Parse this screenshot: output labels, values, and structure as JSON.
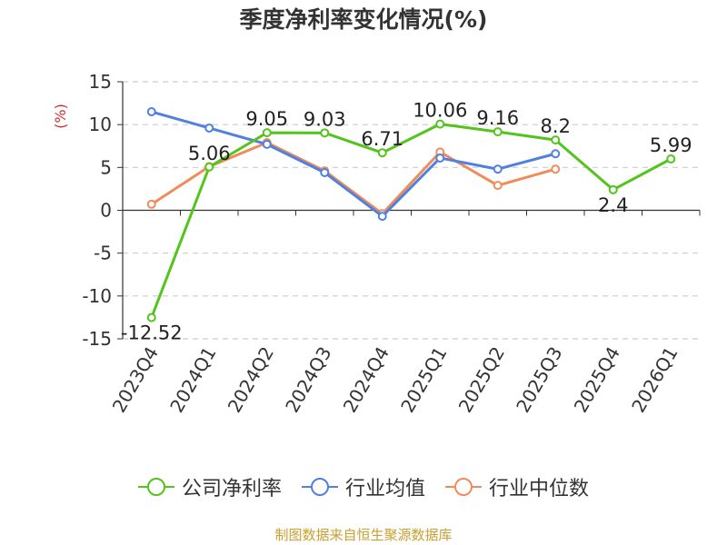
{
  "chart_data": {
    "type": "line",
    "title": "季度净利率变化情况(%)",
    "ylabel": "(%)",
    "xlabel": "",
    "categories": [
      "2023Q4",
      "2024Q1",
      "2024Q2",
      "2024Q3",
      "2024Q4",
      "2025Q1",
      "2025Q2",
      "2025Q3",
      "2025Q4",
      "2026Q1"
    ],
    "ylim": [
      -15,
      15
    ],
    "yticks": [
      15,
      10,
      5,
      0,
      -5,
      -10,
      -15
    ],
    "grid": true,
    "legend_position": "bottom",
    "series": [
      {
        "name": "公司净利率",
        "color": "#52c41a",
        "values": [
          -12.52,
          5.06,
          9.05,
          9.03,
          6.71,
          10.06,
          9.16,
          8.2,
          2.4,
          5.99
        ],
        "labels": [
          "-12.52",
          "5.06",
          "9.05",
          "9.03",
          "6.71",
          "10.06",
          "9.16",
          "8.2",
          "2.4",
          "5.99"
        ]
      },
      {
        "name": "行业均值",
        "color": "#5080e0",
        "values": [
          11.5,
          9.6,
          7.7,
          4.4,
          -0.7,
          6.1,
          4.8,
          6.6,
          null,
          null
        ]
      },
      {
        "name": "行业中位数",
        "color": "#f08c5a",
        "values": [
          0.7,
          5.1,
          7.9,
          4.6,
          -0.4,
          6.8,
          2.9,
          4.8,
          null,
          null
        ]
      }
    ]
  },
  "legend": {
    "items": [
      "公司净利率",
      "行业均值",
      "行业中位数"
    ]
  },
  "source": "制图数据来自恒生聚源数据库"
}
